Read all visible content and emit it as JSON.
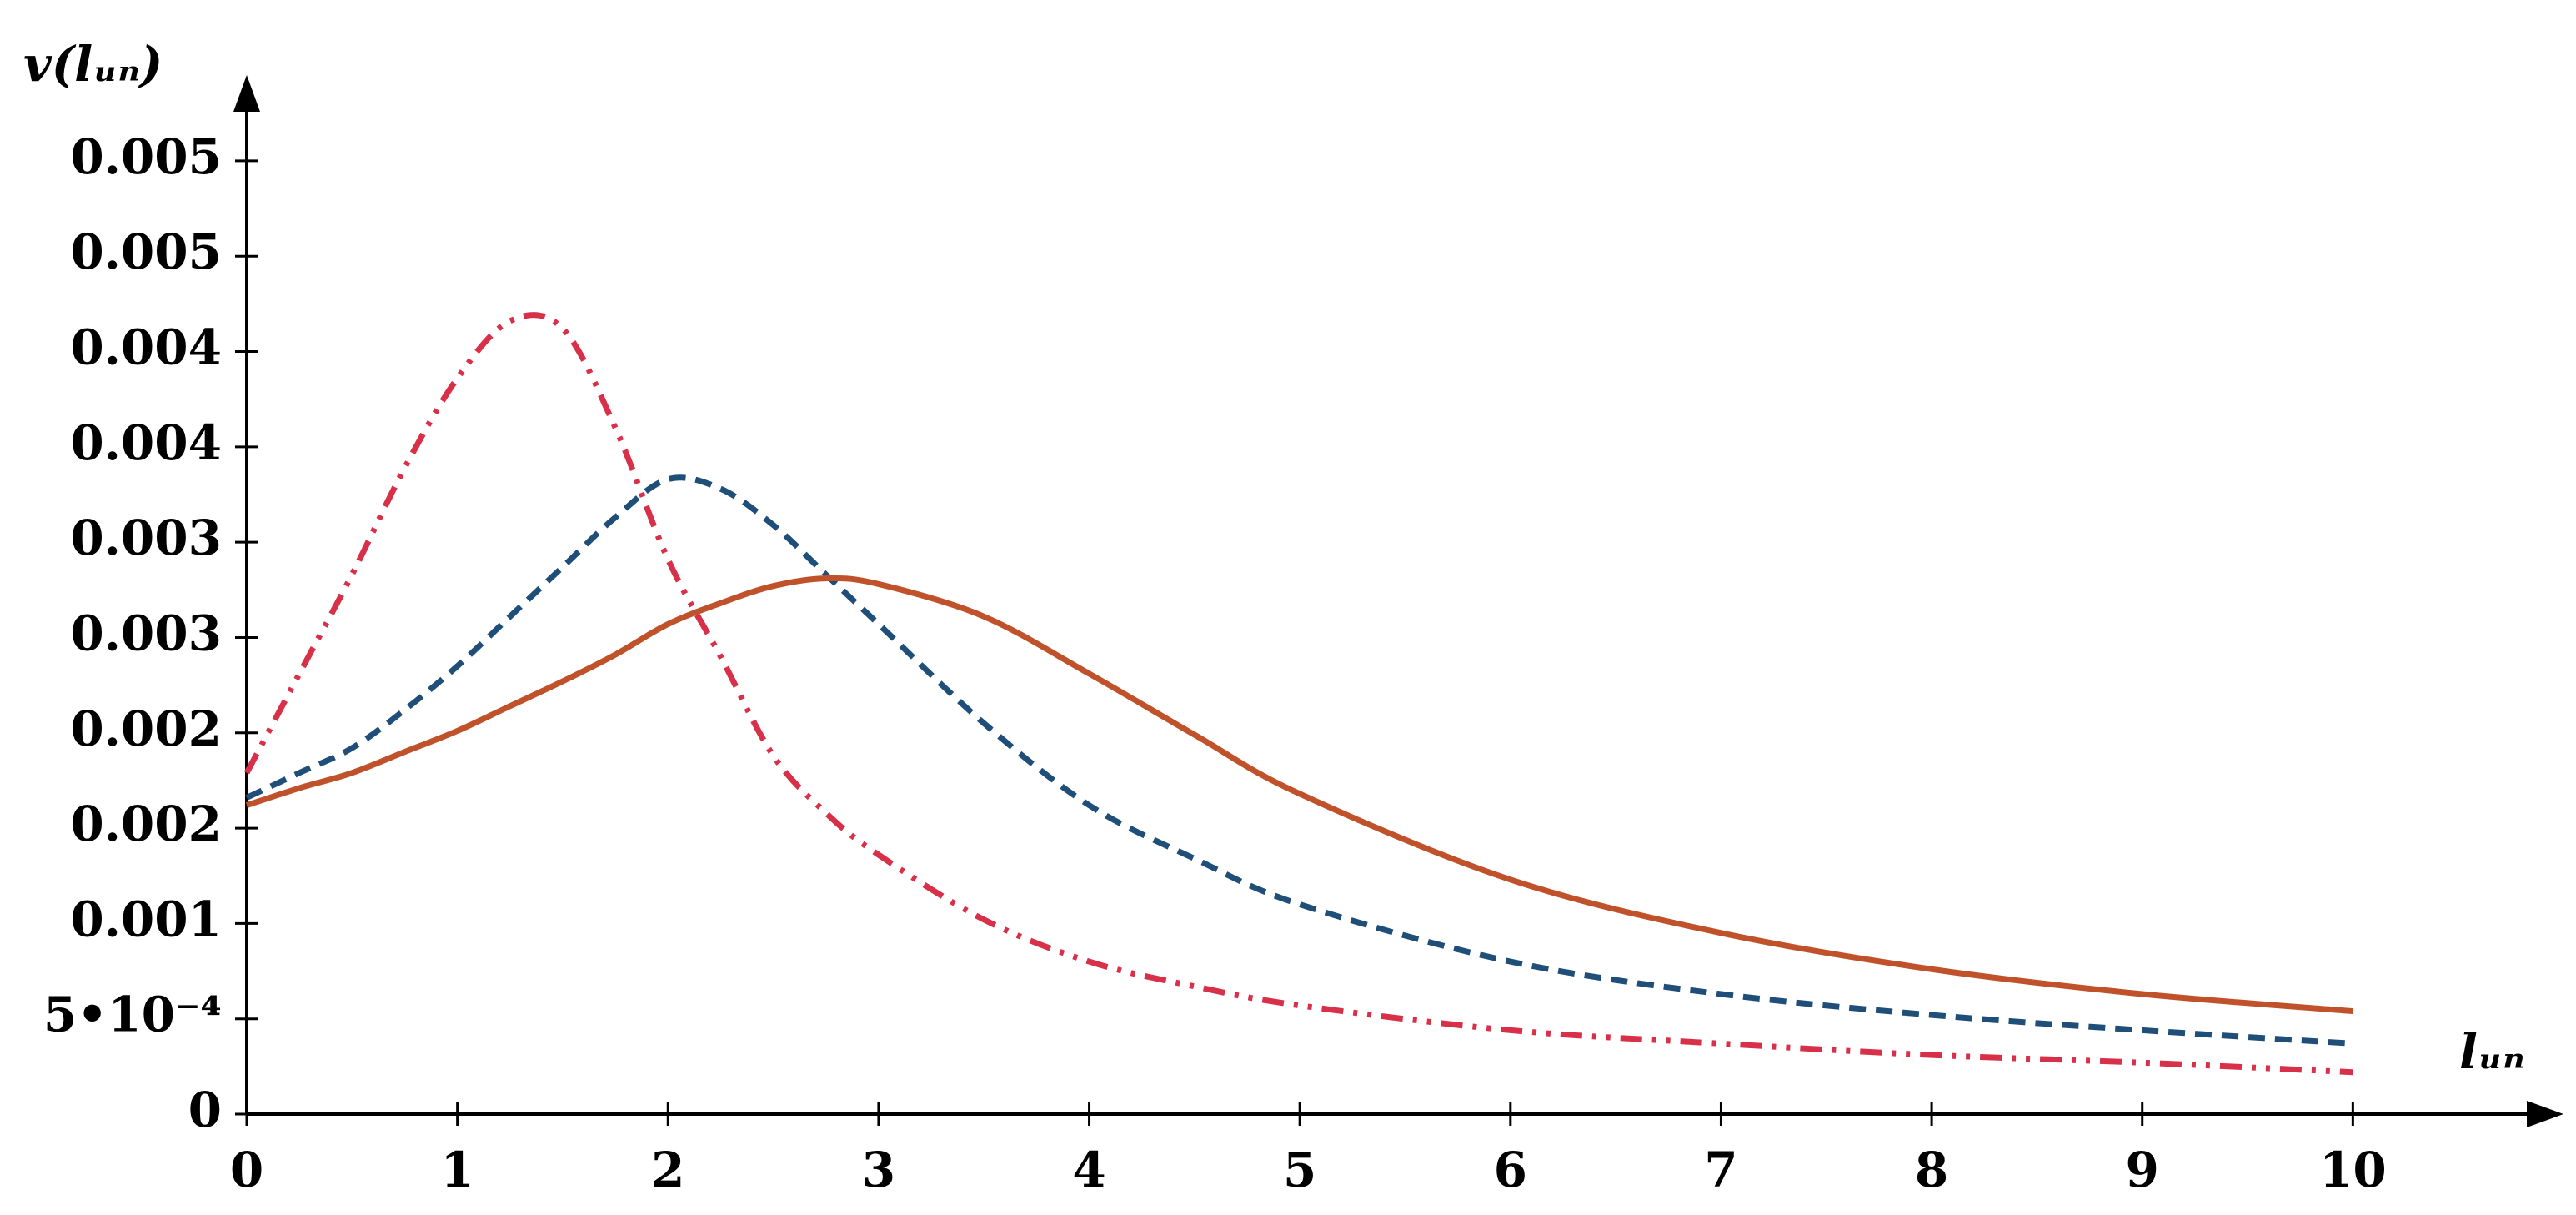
{
  "chart_data": {
    "type": "line",
    "y_label": "v(lᵤₙ)",
    "x_label": "lᵤₙ",
    "x": [
      0,
      0.25,
      0.5,
      0.75,
      1,
      1.25,
      1.5,
      1.75,
      2,
      2.25,
      2.5,
      2.75,
      3,
      3.5,
      4,
      4.5,
      5,
      6,
      7,
      8,
      9,
      10
    ],
    "series": [
      {
        "color": "#d9304a",
        "dash": "dash-dot-dot",
        "values": [
          0.00179,
          0.00231,
          0.00283,
          0.00339,
          0.00386,
          0.00416,
          0.00412,
          0.0036,
          0.00291,
          0.0024,
          0.00188,
          0.00158,
          0.00136,
          0.00102,
          0.0008,
          0.00067,
          0.00057,
          0.00044,
          0.00037,
          0.00031,
          0.00027,
          0.00022
        ]
      },
      {
        "color": "#1f4e79",
        "dash": "dashed",
        "values": [
          0.00166,
          0.00179,
          0.00192,
          0.00212,
          0.00235,
          0.00261,
          0.00287,
          0.00313,
          0.00333,
          0.00328,
          0.00309,
          0.00283,
          0.00257,
          0.00205,
          0.00162,
          0.00134,
          0.0011,
          0.0008,
          0.00063,
          0.00052,
          0.00044,
          0.00037
        ]
      },
      {
        "color": "#c0522b",
        "dash": "solid",
        "values": [
          0.00162,
          0.00171,
          0.00179,
          0.0019,
          0.00201,
          0.00214,
          0.00227,
          0.00241,
          0.00257,
          0.00268,
          0.00277,
          0.00281,
          0.00278,
          0.00261,
          0.00231,
          0.00199,
          0.00168,
          0.00123,
          0.00095,
          0.00076,
          0.00063,
          0.00054
        ]
      }
    ],
    "xlim": [
      0,
      11
    ],
    "ylim": [
      0,
      0.00545
    ],
    "xticks": [
      0,
      1,
      2,
      3,
      4,
      5,
      6,
      7,
      8,
      9,
      10
    ],
    "yticks": [
      0,
      {
        "value": 0.0005,
        "label": "5•10⁻⁴"
      },
      0.001,
      {
        "value": 0.0015,
        "label": "0.002"
      },
      0.002,
      {
        "value": 0.0025,
        "label": "0.003"
      },
      0.003,
      {
        "value": 0.0035,
        "label": "0.004"
      },
      0.004,
      {
        "value": 0.0045,
        "label": "0.005"
      },
      0.005
    ],
    "grid": false
  }
}
